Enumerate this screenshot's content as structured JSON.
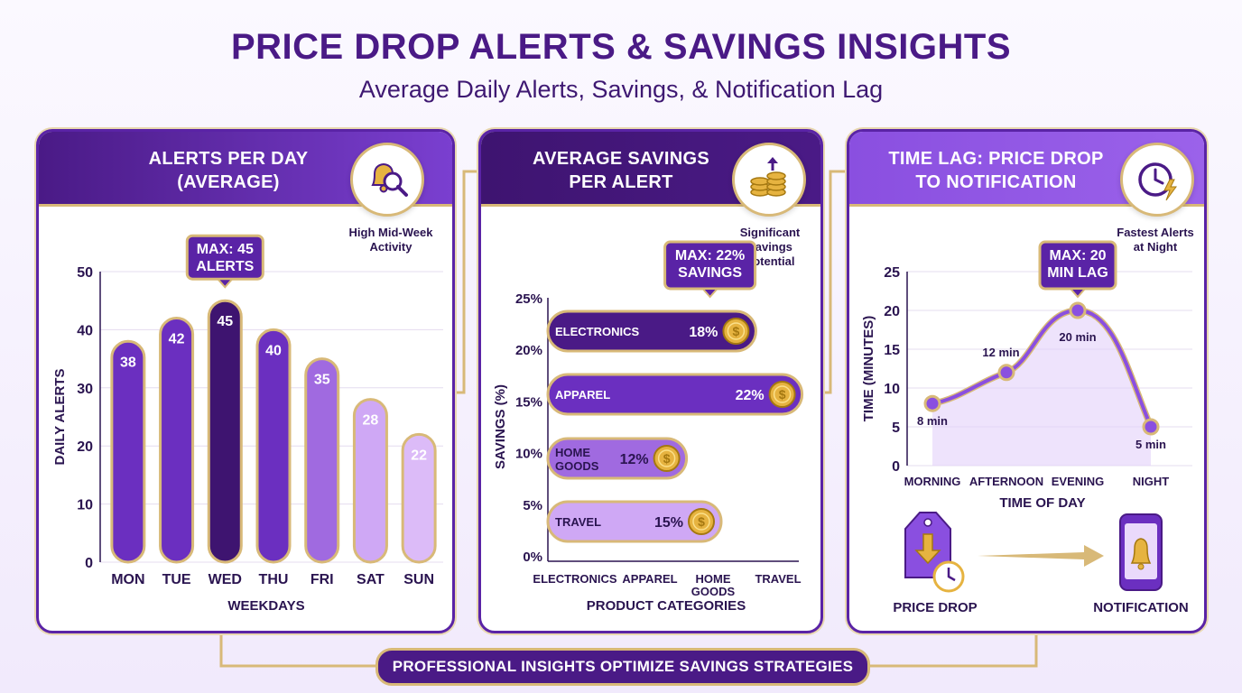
{
  "header": {
    "title": "PRICE DROP ALERTS & SAVINGS INSIGHTS",
    "subtitle": "Average Daily Alerts, Savings, & Notification Lag"
  },
  "colors": {
    "primary": "#5a23a6",
    "dark": "#3e1470",
    "gold": "#d8b978",
    "coin": "#e6b340"
  },
  "panels": {
    "alerts": {
      "title_line1": "ALERTS PER DAY",
      "title_line2": "(AVERAGE)",
      "icon": "bell-search-icon",
      "note_line1": "High Mid-Week",
      "note_line2": "Activity",
      "callout_line1": "MAX: 45",
      "callout_line2": "ALERTS"
    },
    "savings": {
      "title_line1": "AVERAGE SAVINGS",
      "title_line2": "PER ALERT",
      "icon": "coin-stack-growth-icon",
      "note_line1": "Significant",
      "note_line2": "Savings",
      "note_line3": "Potential",
      "callout_line1": "MAX: 22%",
      "callout_line2": "SAVINGS"
    },
    "lag": {
      "title_line1": "TIME LAG: PRICE DROP",
      "title_line2": "TO NOTIFICATION",
      "icon": "clock-lightning-icon",
      "note_line1": "Fastest Alerts",
      "note_line2": "at Night",
      "callout_line1": "MAX: 20",
      "callout_line2": "MIN LAG",
      "flow_from": "PRICE DROP",
      "flow_to": "NOTIFICATION",
      "flow_from_icon": "price-tag-drop-icon",
      "flow_to_icon": "phone-bell-icon"
    }
  },
  "footer": "PROFESSIONAL INSIGHTS OPTIMIZE SAVINGS STRATEGIES",
  "chart_data": [
    {
      "type": "bar",
      "title": "ALERTS PER DAY (AVERAGE)",
      "categories": [
        "MON",
        "TUE",
        "WED",
        "THU",
        "FRI",
        "SAT",
        "SUN"
      ],
      "values": [
        38,
        42,
        45,
        40,
        35,
        28,
        22
      ],
      "colors": [
        "#6b2fc0",
        "#6b2fc0",
        "#3e1470",
        "#6b2fc0",
        "#a06ae0",
        "#cfa8f5",
        "#dcbbf8"
      ],
      "labels": [
        "38",
        "42",
        "45",
        "40",
        "35",
        "28",
        "22"
      ],
      "xlabel": "WEEKDAYS",
      "ylabel": "DAILY ALERTS",
      "ylim": [
        0,
        50
      ],
      "yticks": [
        0,
        10,
        20,
        30,
        40,
        50
      ],
      "grid": true
    },
    {
      "type": "bar",
      "orientation": "horizontal",
      "title": "AVERAGE SAVINGS PER ALERT",
      "categories": [
        "ELECTRONICS",
        "APPAREL",
        "HOME GOODS",
        "TRAVEL"
      ],
      "bar_labels": [
        [
          "ELECTRONICS"
        ],
        [
          "APPAREL"
        ],
        [
          "HOME",
          "GOODS"
        ],
        [
          "TRAVEL"
        ]
      ],
      "x_tick_labels": [
        [
          "ELECTRONICS"
        ],
        [
          "APPAREL"
        ],
        [
          "HOME",
          "GOODS"
        ],
        [
          "TRAVEL"
        ]
      ],
      "values": [
        18,
        22,
        12,
        15
      ],
      "value_labels": [
        "18%",
        "22%",
        "12%",
        "15%"
      ],
      "colors": [
        "#4a1a86",
        "#6b2fc0",
        "#a06ae0",
        "#cfa8f5"
      ],
      "xlabel": "PRODUCT CATEGORIES",
      "ylabel": "SAVINGS (%)",
      "yticks": [
        "0%",
        "5%",
        "10%",
        "15%",
        "20%",
        "25%"
      ],
      "xlim": [
        0,
        25
      ]
    },
    {
      "type": "line",
      "title": "TIME LAG: PRICE DROP TO NOTIFICATION",
      "categories": [
        "MORNING",
        "AFTERNOON",
        "EVENING",
        "NIGHT"
      ],
      "values": [
        8,
        12,
        20,
        5
      ],
      "point_labels": [
        "8 min",
        "12 min",
        "20 min",
        "5 min"
      ],
      "xlabel": "TIME OF DAY",
      "ylabel": "TIME (MINUTES)",
      "ylim": [
        0,
        25
      ],
      "yticks": [
        0,
        5,
        10,
        15,
        20,
        25
      ],
      "grid": true
    }
  ]
}
